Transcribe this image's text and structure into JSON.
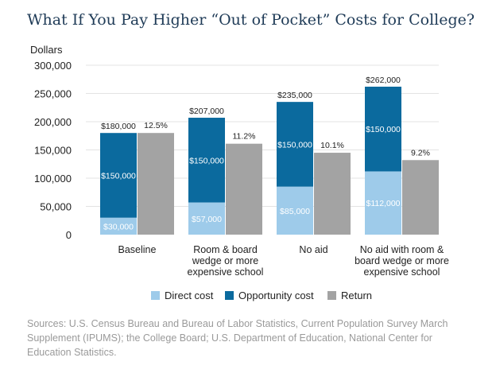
{
  "page": {
    "title": "What If You Pay Higher “Out of Pocket” Costs for College?",
    "source": "Sources: U.S. Census Bureau and Bureau of Labor Statistics, Current Population Survey March Supplement (IPUMS); the College Board; U.S. Department of Education, National Center for Education Statistics."
  },
  "chart_data": {
    "type": "bar",
    "title": "What If You Pay Higher “Out of Pocket” Costs for College?",
    "ylabel": "Dollars",
    "xlabel": "",
    "ylim": [
      0,
      300000
    ],
    "yticks": [
      0,
      50000,
      100000,
      150000,
      200000,
      250000,
      300000
    ],
    "ytick_labels": [
      "0",
      "50,000",
      "100,000",
      "150,000",
      "200,000",
      "250,000",
      "300,000"
    ],
    "grid": true,
    "categories": [
      [
        "Baseline"
      ],
      [
        "Room & board",
        "wedge or more",
        "expensive school"
      ],
      [
        "No aid"
      ],
      [
        "No aid with room &",
        "board wedge or more",
        "expensive school"
      ]
    ],
    "series": [
      {
        "name": "Direct cost",
        "stack": "cost",
        "values": [
          30000,
          57000,
          85000,
          112000
        ],
        "labels": [
          "$30,000",
          "$57,000",
          "$85,000",
          "$112,000"
        ]
      },
      {
        "name": "Opportunity cost",
        "stack": "cost",
        "values": [
          150000,
          150000,
          150000,
          150000
        ],
        "labels": [
          "$150,000",
          "$150,000",
          "$150,000",
          "$150,000"
        ]
      },
      {
        "name": "Return",
        "stack": "return",
        "values": [
          180000,
          161000,
          145000,
          132000
        ],
        "labels": [
          "12.5%",
          "11.2%",
          "10.1%",
          "9.2%"
        ]
      }
    ],
    "totals": [
      "$180,000",
      "$207,000",
      "$235,000",
      "$262,000"
    ],
    "legend": [
      "Direct cost",
      "Opportunity cost",
      "Return"
    ],
    "legend_position": "bottom",
    "colors": {
      "direct": "#9ecbea",
      "opportunity": "#0b6a9e",
      "return": "#a3a3a3",
      "axis_text": "#222222",
      "grid": "#e3e3e3",
      "title": "#1f3b57"
    }
  }
}
